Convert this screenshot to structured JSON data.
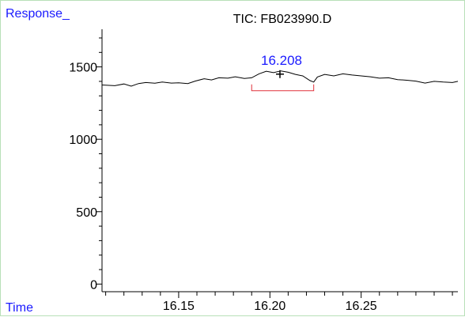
{
  "chart_data": {
    "type": "line",
    "title": "TIC: FB023990.D",
    "ylabel": "Response_",
    "xlabel": "Time",
    "xlim": [
      16.108,
      16.303
    ],
    "ylim": [
      -20,
      1760
    ],
    "x_ticks": [
      "16.15",
      "16.20",
      "16.25"
    ],
    "y_ticks": [
      "0",
      "500",
      "1000",
      "1500"
    ],
    "series": [
      {
        "x": [
          16.108,
          16.115,
          16.12,
          16.124,
          16.128,
          16.132,
          16.137,
          16.141,
          16.146,
          16.15,
          16.155,
          16.159,
          16.164,
          16.168,
          16.172,
          16.177,
          16.181,
          16.186,
          16.19,
          16.194,
          16.198,
          16.202,
          16.206,
          16.21,
          16.214,
          16.218,
          16.222,
          16.224,
          16.226,
          16.23,
          16.235,
          16.24,
          16.245,
          16.25,
          16.255,
          16.26,
          16.265,
          16.27,
          16.275,
          16.28,
          16.285,
          16.29,
          16.295,
          16.3,
          16.303
        ],
        "y": [
          1375,
          1370,
          1382,
          1367,
          1385,
          1392,
          1387,
          1395,
          1388,
          1390,
          1385,
          1402,
          1418,
          1410,
          1425,
          1422,
          1432,
          1420,
          1425,
          1452,
          1470,
          1460,
          1472,
          1463,
          1448,
          1438,
          1405,
          1395,
          1430,
          1448,
          1438,
          1452,
          1444,
          1438,
          1432,
          1422,
          1425,
          1412,
          1408,
          1402,
          1388,
          1400,
          1395,
          1392,
          1400
        ]
      }
    ],
    "peak": {
      "label": "16.208",
      "rt": 16.2055,
      "start": 16.19,
      "end": 16.224,
      "baseline": 1390,
      "apex": 1450
    }
  },
  "colors": {
    "trace": "#000000",
    "peak_marker": "#e0303a",
    "blue_label": "#1a1aff",
    "frame": "#b8e0b8"
  }
}
